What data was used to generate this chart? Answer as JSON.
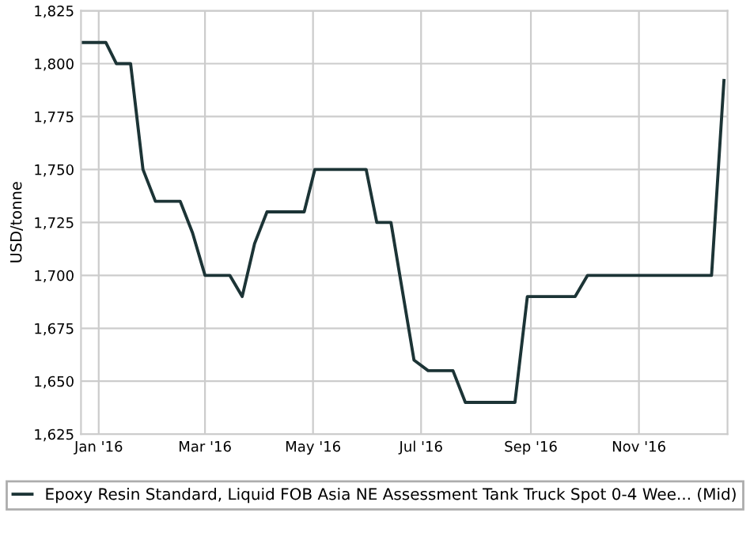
{
  "chart_data": {
    "type": "line",
    "ylabel": "USD/tonne",
    "series": [
      {
        "name": "Epoxy Resin Standard, Liquid FOB Asia NE Assessment Tank Truck Spot 0-4 Wee... (Mid)",
        "color": "#1c3436",
        "x": [
          "2015-12-22",
          "2016-01-05",
          "2016-01-11",
          "2016-01-19",
          "2016-01-26",
          "2016-02-02",
          "2016-02-16",
          "2016-02-23",
          "2016-03-01",
          "2016-03-15",
          "2016-03-22",
          "2016-03-29",
          "2016-04-05",
          "2016-04-26",
          "2016-05-02",
          "2016-05-31",
          "2016-06-06",
          "2016-06-14",
          "2016-06-27",
          "2016-07-05",
          "2016-07-19",
          "2016-07-26",
          "2016-08-23",
          "2016-08-30",
          "2016-09-26",
          "2016-10-03",
          "2016-12-12",
          "2016-12-19"
        ],
        "values": [
          1810,
          1810,
          1800,
          1800,
          1750,
          1735,
          1735,
          1720,
          1700,
          1700,
          1690,
          1715,
          1730,
          1730,
          1750,
          1750,
          1725,
          1725,
          1660,
          1655,
          1655,
          1640,
          1640,
          1690,
          1690,
          1700,
          1700,
          1792
        ]
      }
    ],
    "xlim": [
      "2015-12-22",
      "2016-12-21"
    ],
    "xticks": [
      {
        "value": "2016-01-01",
        "label": "Jan '16"
      },
      {
        "value": "2016-03-01",
        "label": "Mar '16"
      },
      {
        "value": "2016-05-01",
        "label": "May '16"
      },
      {
        "value": "2016-07-01",
        "label": "Jul '16"
      },
      {
        "value": "2016-09-01",
        "label": "Sep '16"
      },
      {
        "value": "2016-11-01",
        "label": "Nov '16"
      }
    ],
    "ylim": [
      1625,
      1825
    ],
    "yticks": [
      {
        "value": 1625,
        "label": "1,625"
      },
      {
        "value": 1650,
        "label": "1,650"
      },
      {
        "value": 1675,
        "label": "1,675"
      },
      {
        "value": 1700,
        "label": "1,700"
      },
      {
        "value": 1725,
        "label": "1,725"
      },
      {
        "value": 1750,
        "label": "1,750"
      },
      {
        "value": 1775,
        "label": "1,775"
      },
      {
        "value": 1800,
        "label": "1,800"
      },
      {
        "value": 1825,
        "label": "1,825"
      }
    ],
    "grid": true,
    "legend": "bottom",
    "marker": "none",
    "line_style": "solid"
  }
}
